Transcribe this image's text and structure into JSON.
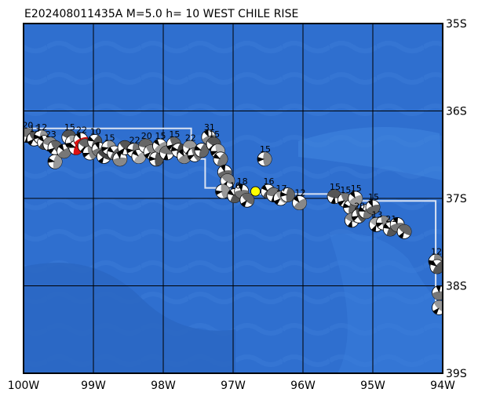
{
  "title": "E202408011435A  M=5.0  h= 10  WEST CHILE RISE",
  "map": {
    "ocean_color": "#2f6fcf",
    "grid_color": "#000000",
    "boundary_color": "#d9e2f2",
    "lon_range": [
      -100,
      -94
    ],
    "lat_range": [
      -39,
      -35
    ],
    "lon_ticks": [
      {
        "value": -100,
        "label": "100W"
      },
      {
        "value": -99,
        "label": "99W"
      },
      {
        "value": -98,
        "label": "98W"
      },
      {
        "value": -97,
        "label": "97W"
      },
      {
        "value": -96,
        "label": "96W"
      },
      {
        "value": -95,
        "label": "95W"
      },
      {
        "value": -94,
        "label": "94W"
      }
    ],
    "lat_ticks": [
      {
        "value": -35,
        "label": "35S"
      },
      {
        "value": -36,
        "label": "36S"
      },
      {
        "value": -37,
        "label": "37S"
      },
      {
        "value": -38,
        "label": "38S"
      },
      {
        "value": -39,
        "label": "39S"
      }
    ],
    "plate_boundary": [
      [
        -100.0,
        -36.2
      ],
      [
        -97.6,
        -36.2
      ],
      [
        -97.6,
        -36.55
      ],
      [
        -97.4,
        -36.55
      ],
      [
        -97.4,
        -36.88
      ],
      [
        -97.05,
        -36.88
      ],
      [
        -97.05,
        -36.95
      ],
      [
        -95.4,
        -36.95
      ],
      [
        -95.4,
        -37.03
      ],
      [
        -94.1,
        -37.03
      ],
      [
        -94.1,
        -38.2
      ],
      [
        -94.0,
        -38.2
      ]
    ],
    "event": {
      "lon": -96.68,
      "lat": -36.92,
      "color": "#ffff00"
    },
    "events": [
      {
        "lon": -99.95,
        "lat": -36.28,
        "color": "#777777",
        "depth": "20"
      },
      {
        "lon": -99.85,
        "lat": -36.32,
        "color": "#555555",
        "depth": "13"
      },
      {
        "lon": -99.75,
        "lat": -36.3,
        "color": "#999999",
        "depth": "12"
      },
      {
        "lon": -99.7,
        "lat": -36.36,
        "color": "#444444",
        "depth": ""
      },
      {
        "lon": -99.62,
        "lat": -36.38,
        "color": "#888888",
        "depth": "23"
      },
      {
        "lon": -99.55,
        "lat": -36.42,
        "color": "#666666",
        "depth": ""
      },
      {
        "lon": -99.55,
        "lat": -36.58,
        "color": "#999999",
        "depth": ""
      },
      {
        "lon": -99.42,
        "lat": -36.46,
        "color": "#777777",
        "depth": ""
      },
      {
        "lon": -99.35,
        "lat": -36.3,
        "color": "#555555",
        "depth": "15"
      },
      {
        "lon": -99.3,
        "lat": -36.36,
        "color": "#aaaaaa",
        "depth": ""
      },
      {
        "lon": -99.25,
        "lat": -36.42,
        "color": "#dd1111",
        "depth": ""
      },
      {
        "lon": -99.18,
        "lat": -36.33,
        "color": "#dd1111",
        "depth": "22"
      },
      {
        "lon": -99.12,
        "lat": -36.4,
        "color": "#666666",
        "depth": ""
      },
      {
        "lon": -99.05,
        "lat": -36.48,
        "color": "#888888",
        "depth": ""
      },
      {
        "lon": -98.98,
        "lat": -36.35,
        "color": "#555555",
        "depth": "10"
      },
      {
        "lon": -98.92,
        "lat": -36.44,
        "color": "#777777",
        "depth": ""
      },
      {
        "lon": -98.85,
        "lat": -36.52,
        "color": "#444444",
        "depth": ""
      },
      {
        "lon": -98.78,
        "lat": -36.42,
        "color": "#999999",
        "depth": "15"
      },
      {
        "lon": -98.7,
        "lat": -36.48,
        "color": "#666666",
        "depth": ""
      },
      {
        "lon": -98.62,
        "lat": -36.55,
        "color": "#888888",
        "depth": ""
      },
      {
        "lon": -98.55,
        "lat": -36.42,
        "color": "#555555",
        "depth": ""
      },
      {
        "lon": -98.42,
        "lat": -36.45,
        "color": "#777777",
        "depth": "22"
      },
      {
        "lon": -98.35,
        "lat": -36.52,
        "color": "#aaaaaa",
        "depth": ""
      },
      {
        "lon": -98.25,
        "lat": -36.4,
        "color": "#666666",
        "depth": "20"
      },
      {
        "lon": -98.18,
        "lat": -36.47,
        "color": "#888888",
        "depth": ""
      },
      {
        "lon": -98.1,
        "lat": -36.55,
        "color": "#555555",
        "depth": ""
      },
      {
        "lon": -98.05,
        "lat": -36.4,
        "color": "#999999",
        "depth": "15"
      },
      {
        "lon": -97.95,
        "lat": -36.48,
        "color": "#777777",
        "depth": ""
      },
      {
        "lon": -97.85,
        "lat": -36.38,
        "color": "#666666",
        "depth": "15"
      },
      {
        "lon": -97.78,
        "lat": -36.45,
        "color": "#444444",
        "depth": ""
      },
      {
        "lon": -97.7,
        "lat": -36.52,
        "color": "#888888",
        "depth": ""
      },
      {
        "lon": -97.62,
        "lat": -36.42,
        "color": "#999999",
        "depth": "22"
      },
      {
        "lon": -97.55,
        "lat": -36.5,
        "color": "#777777",
        "depth": ""
      },
      {
        "lon": -97.45,
        "lat": -36.45,
        "color": "#666666",
        "depth": ""
      },
      {
        "lon": -97.35,
        "lat": -36.3,
        "color": "#888888",
        "depth": "31"
      },
      {
        "lon": -97.28,
        "lat": -36.38,
        "color": "#555555",
        "depth": "15"
      },
      {
        "lon": -97.22,
        "lat": -36.46,
        "color": "#aaaaaa",
        "depth": ""
      },
      {
        "lon": -97.18,
        "lat": -36.55,
        "color": "#777777",
        "depth": ""
      },
      {
        "lon": -97.12,
        "lat": -36.7,
        "color": "#666666",
        "depth": ""
      },
      {
        "lon": -97.08,
        "lat": -36.8,
        "color": "#888888",
        "depth": ""
      },
      {
        "lon": -97.15,
        "lat": -36.92,
        "color": "#999999",
        "depth": ""
      },
      {
        "lon": -96.98,
        "lat": -36.97,
        "color": "#555555",
        "depth": "16"
      },
      {
        "lon": -96.88,
        "lat": -36.92,
        "color": "#777777",
        "depth": "18"
      },
      {
        "lon": -96.8,
        "lat": -37.02,
        "color": "#666666",
        "depth": ""
      },
      {
        "lon": -96.55,
        "lat": -36.55,
        "color": "#888888",
        "depth": "15"
      },
      {
        "lon": -96.5,
        "lat": -36.92,
        "color": "#555555",
        "depth": "16"
      },
      {
        "lon": -96.42,
        "lat": -36.96,
        "color": "#777777",
        "depth": ""
      },
      {
        "lon": -96.32,
        "lat": -37.0,
        "color": "#aaaaaa",
        "depth": "17"
      },
      {
        "lon": -96.22,
        "lat": -36.96,
        "color": "#666666",
        "depth": ""
      },
      {
        "lon": -96.05,
        "lat": -37.05,
        "color": "#888888",
        "depth": "12"
      },
      {
        "lon": -95.55,
        "lat": -36.98,
        "color": "#555555",
        "depth": "15"
      },
      {
        "lon": -95.4,
        "lat": -37.02,
        "color": "#777777",
        "depth": "15"
      },
      {
        "lon": -95.32,
        "lat": -37.1,
        "color": "#666666",
        "depth": ""
      },
      {
        "lon": -95.25,
        "lat": -37.0,
        "color": "#999999",
        "depth": "15"
      },
      {
        "lon": -95.3,
        "lat": -37.25,
        "color": "#888888",
        "depth": ""
      },
      {
        "lon": -95.2,
        "lat": -37.2,
        "color": "#555555",
        "depth": "20"
      },
      {
        "lon": -95.1,
        "lat": -37.15,
        "color": "#777777",
        "depth": ""
      },
      {
        "lon": -95.0,
        "lat": -37.1,
        "color": "#666666",
        "depth": "15"
      },
      {
        "lon": -94.95,
        "lat": -37.3,
        "color": "#aaaaaa",
        "depth": "13"
      },
      {
        "lon": -94.85,
        "lat": -37.28,
        "color": "#888888",
        "depth": ""
      },
      {
        "lon": -94.75,
        "lat": -37.35,
        "color": "#555555",
        "depth": "21"
      },
      {
        "lon": -94.65,
        "lat": -37.3,
        "color": "#777777",
        "depth": ""
      },
      {
        "lon": -94.55,
        "lat": -37.38,
        "color": "#666666",
        "depth": ""
      },
      {
        "lon": -94.1,
        "lat": -37.72,
        "color": "#888888",
        "depth": "12"
      },
      {
        "lon": -94.08,
        "lat": -37.78,
        "color": "#555555",
        "depth": ""
      },
      {
        "lon": -94.05,
        "lat": -38.08,
        "color": "#777777",
        "depth": ""
      },
      {
        "lon": -94.05,
        "lat": -38.25,
        "color": "#999999",
        "depth": ""
      }
    ]
  }
}
